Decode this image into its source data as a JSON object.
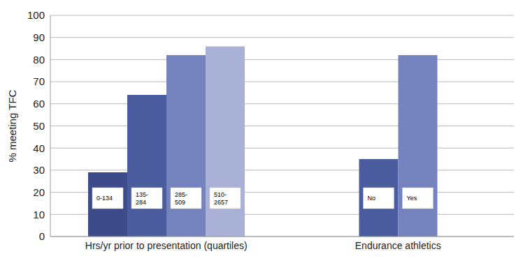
{
  "chart_data": {
    "type": "bar",
    "y_label": "% meeting TFC",
    "ylim": [
      0,
      100
    ],
    "yticks": [
      0,
      10,
      20,
      30,
      40,
      50,
      60,
      70,
      80,
      90,
      100
    ],
    "grid": true,
    "groups": [
      {
        "label": "Hrs/yr prior to presentation (quartiles)",
        "categories": [
          "0-134",
          "135-284",
          "285-509",
          "510-2657"
        ],
        "values": [
          29,
          64,
          82,
          86
        ],
        "colors": [
          "#3d4b8a",
          "#4b5c9e",
          "#7482be",
          "#a9b1d6"
        ]
      },
      {
        "label": "Endurance athletics",
        "categories": [
          "No",
          "Yes"
        ],
        "values": [
          35,
          82
        ],
        "colors": [
          "#4b5c9e",
          "#7482be"
        ]
      }
    ]
  }
}
